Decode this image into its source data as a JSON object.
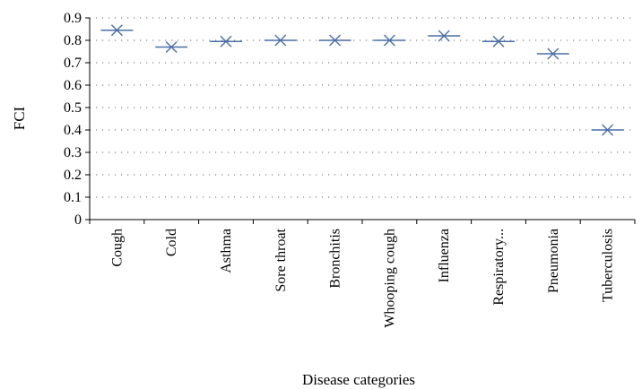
{
  "chart_data": {
    "type": "scatter",
    "title": "",
    "xlabel": "Disease categories",
    "ylabel": "FCI",
    "categories": [
      "Cough",
      "Cold",
      "Asthma",
      "Sore throat",
      "Bronchitis",
      "Whooping cough",
      "Influenza",
      "Respiratory...",
      "Pneumonia",
      "Tuberculosis"
    ],
    "values": [
      0.845,
      0.77,
      0.795,
      0.8,
      0.8,
      0.8,
      0.82,
      0.795,
      0.74,
      0.4
    ],
    "ylim": [
      0,
      0.9
    ],
    "yticks": [
      "0",
      "0.1",
      "0.2",
      "0.3",
      "0.4",
      "0.5",
      "0.6",
      "0.7",
      "0.8",
      "0.9"
    ],
    "grid": "horizontal dotted",
    "marker": "x with horizontal bar",
    "colors": {
      "marker": "#4a6fa5",
      "axis": "#000000",
      "grid": "#888888"
    }
  }
}
